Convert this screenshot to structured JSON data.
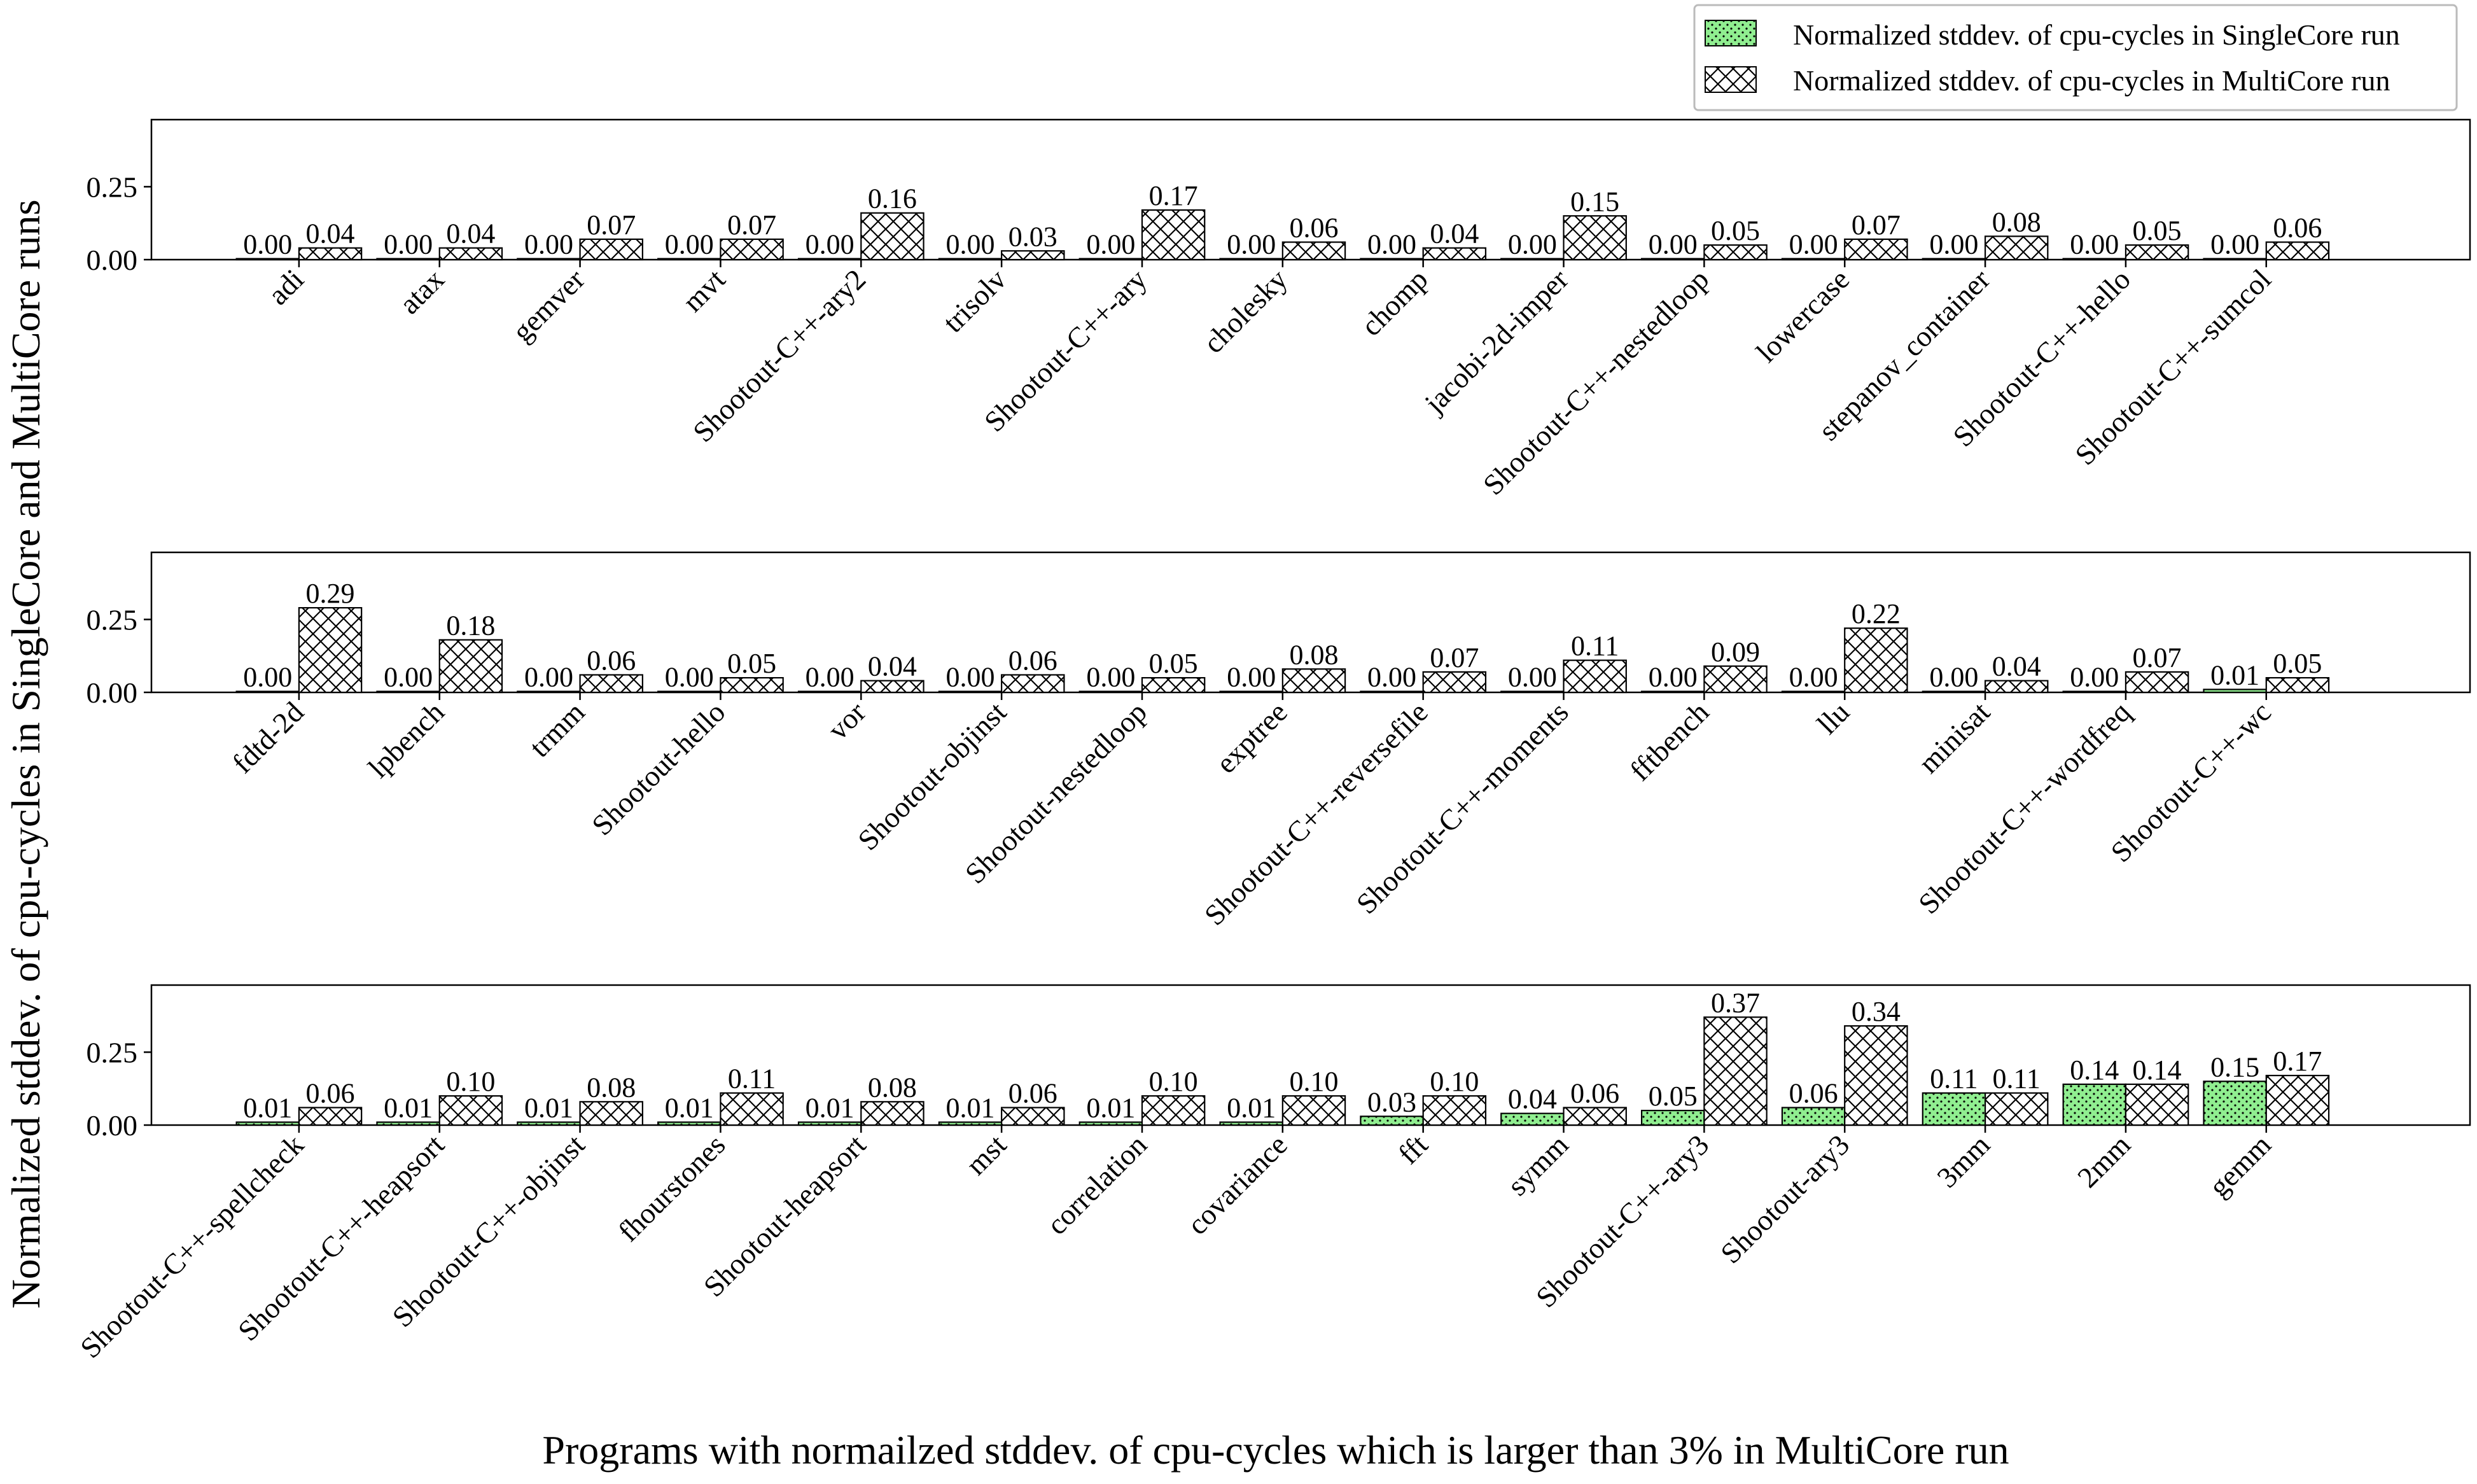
{
  "figure": {
    "ylabel": "Normalized stddev. of cpu-cycles in SingleCore and MultiCore runs",
    "xlabel": "Programs with normailzed stddev. of cpu-cycles which is larger than 3% in MultiCore run"
  },
  "legend": {
    "placement": "top-right",
    "entries": [
      {
        "label": "Normalized stddev. of cpu-cycles in SingleCore run",
        "fill": "#90ee90",
        "hatch": "dots"
      },
      {
        "label": "Normalized stddev. of cpu-cycles in MultiCore run",
        "fill": "#ffffff",
        "hatch": "crosshatch"
      }
    ]
  },
  "colors": {
    "single": "#90ee90",
    "multi": "#ffffff",
    "edge": "#000000"
  },
  "chart_data": [
    {
      "type": "bar",
      "categories": [
        "adi",
        "atax",
        "gemver",
        "mvt",
        "Shootout-C++-ary2",
        "trisolv",
        "Shootout-C++-ary",
        "cholesky",
        "chomp",
        "jacobi-2d-imper",
        "Shootout-C++-nestedloop",
        "lowercase",
        "stepanov_container",
        "Shootout-C++-hello",
        "Shootout-C++-sumcol"
      ],
      "series": [
        {
          "name": "Normalized stddev. of cpu-cycles in SingleCore run",
          "values": [
            0.0,
            0.0,
            0.0,
            0.0,
            0.0,
            0.0,
            0.0,
            0.0,
            0.0,
            0.0,
            0.0,
            0.0,
            0.0,
            0.0,
            0.0
          ],
          "labels": [
            "0.00",
            "0.00",
            "0.00",
            "0.00",
            "0.00",
            "0.00",
            "0.00",
            "0.00",
            "0.00",
            "0.00",
            "0.00",
            "0.00",
            "0.00",
            "0.00",
            "0.00"
          ]
        },
        {
          "name": "Normalized stddev. of cpu-cycles in MultiCore run",
          "values": [
            0.04,
            0.04,
            0.07,
            0.07,
            0.16,
            0.03,
            0.17,
            0.06,
            0.04,
            0.15,
            0.05,
            0.07,
            0.08,
            0.05,
            0.06
          ],
          "labels": [
            "0.04",
            "0.04",
            "0.07",
            "0.07",
            "0.16",
            "0.03",
            "0.17",
            "0.06",
            "0.04",
            "0.15",
            "0.05",
            "0.07",
            "0.08",
            "0.05",
            "0.06"
          ]
        }
      ],
      "yticks": [
        "0.00",
        "0.25"
      ],
      "ylim": [
        0,
        0.48
      ],
      "grid": false
    },
    {
      "type": "bar",
      "categories": [
        "fdtd-2d",
        "lpbench",
        "trmm",
        "Shootout-hello",
        "vor",
        "Shootout-objinst",
        "Shootout-nestedloop",
        "exptree",
        "Shootout-C++-reversefile",
        "Shootout-C++-moments",
        "fftbench",
        "llu",
        "minisat",
        "Shootout-C++-wordfreq",
        "Shootout-C++-wc"
      ],
      "series": [
        {
          "name": "Normalized stddev. of cpu-cycles in SingleCore run",
          "values": [
            0.0,
            0.0,
            0.0,
            0.0,
            0.0,
            0.0,
            0.0,
            0.0,
            0.0,
            0.0,
            0.0,
            0.0,
            0.0,
            0.0,
            0.01
          ],
          "labels": [
            "0.00",
            "0.00",
            "0.00",
            "0.00",
            "0.00",
            "0.00",
            "0.00",
            "0.00",
            "0.00",
            "0.00",
            "0.00",
            "0.00",
            "0.00",
            "0.00",
            "0.01"
          ]
        },
        {
          "name": "Normalized stddev. of cpu-cycles in MultiCore run",
          "values": [
            0.29,
            0.18,
            0.06,
            0.05,
            0.04,
            0.06,
            0.05,
            0.08,
            0.07,
            0.11,
            0.09,
            0.22,
            0.04,
            0.07,
            0.05
          ],
          "labels": [
            "0.29",
            "0.18",
            "0.06",
            "0.05",
            "0.04",
            "0.06",
            "0.05",
            "0.08",
            "0.07",
            "0.11",
            "0.09",
            "0.22",
            "0.04",
            "0.07",
            "0.05"
          ]
        }
      ],
      "yticks": [
        "0.00",
        "0.25"
      ],
      "ylim": [
        0,
        0.48
      ],
      "grid": false
    },
    {
      "type": "bar",
      "categories": [
        "Shootout-C++-spellcheck",
        "Shootout-C++-heapsort",
        "Shootout-C++-objinst",
        "fhourstones",
        "Shootout-heapsort",
        "mst",
        "correlation",
        "covariance",
        "fft",
        "symm",
        "Shootout-C++-ary3",
        "Shootout-ary3",
        "3mm",
        "2mm",
        "gemm"
      ],
      "series": [
        {
          "name": "Normalized stddev. of cpu-cycles in SingleCore run",
          "values": [
            0.01,
            0.01,
            0.01,
            0.01,
            0.01,
            0.01,
            0.01,
            0.01,
            0.03,
            0.04,
            0.05,
            0.06,
            0.11,
            0.14,
            0.15
          ],
          "labels": [
            "0.01",
            "0.01",
            "0.01",
            "0.01",
            "0.01",
            "0.01",
            "0.01",
            "0.01",
            "0.03",
            "0.04",
            "0.05",
            "0.06",
            "0.11",
            "0.14",
            "0.15"
          ]
        },
        {
          "name": "Normalized stddev. of cpu-cycles in MultiCore run",
          "values": [
            0.06,
            0.1,
            0.08,
            0.11,
            0.08,
            0.06,
            0.1,
            0.1,
            0.1,
            0.06,
            0.37,
            0.34,
            0.11,
            0.14,
            0.17
          ],
          "labels": [
            "0.06",
            "0.10",
            "0.08",
            "0.11",
            "0.08",
            "0.06",
            "0.10",
            "0.10",
            "0.10",
            "0.06",
            "0.37",
            "0.34",
            "0.11",
            "0.14",
            "0.17"
          ]
        }
      ],
      "yticks": [
        "0.00",
        "0.25"
      ],
      "ylim": [
        0,
        0.48
      ],
      "grid": false
    }
  ]
}
